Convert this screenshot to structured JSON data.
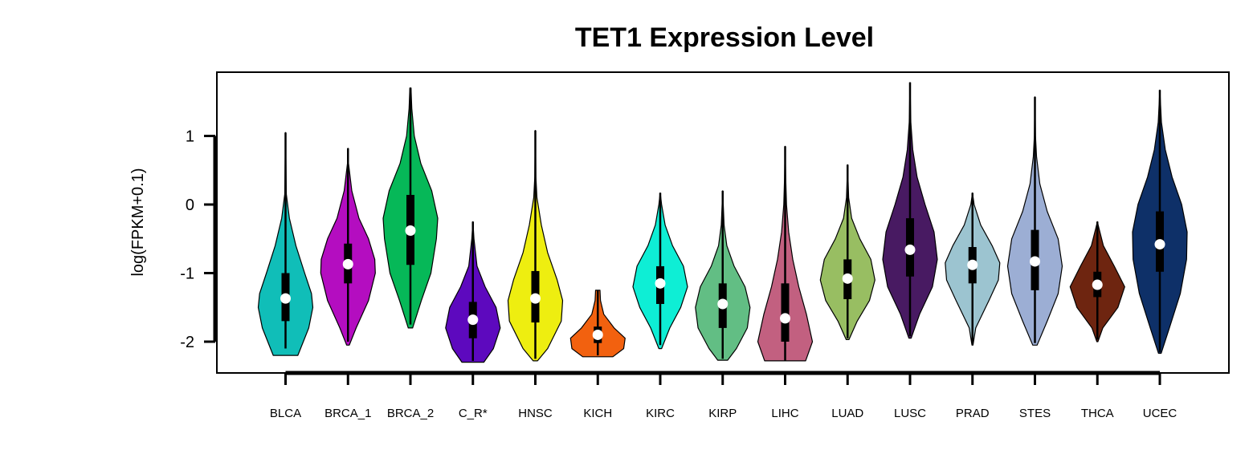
{
  "chart_data": {
    "type": "violin",
    "title": "TET1 Expression Level",
    "ylabel": "log(FPKM+0.1)",
    "ylim": [
      -2.5,
      2.0
    ],
    "yticks": [
      -2,
      -1,
      0,
      1
    ],
    "categories": [
      "BLCA",
      "BRCA_1",
      "BRCA_2",
      "C_R*",
      "HNSC",
      "KICH",
      "KIRC",
      "KIRP",
      "LIHC",
      "LUAD",
      "LUSC",
      "PRAD",
      "STES",
      "THCA",
      "UCEC"
    ],
    "series": [
      {
        "category": "BLCA",
        "color": "#10BEB8",
        "min": -2.2,
        "max": 1.05,
        "q1": -1.7,
        "median": -1.37,
        "q3": -1.0,
        "whisker_low": -2.1,
        "whisker_high": 1.05,
        "profile": [
          [
            -2.2,
            0.45
          ],
          [
            -2.1,
            0.55
          ],
          [
            -1.8,
            0.85
          ],
          [
            -1.5,
            1.0
          ],
          [
            -1.3,
            0.95
          ],
          [
            -1.0,
            0.7
          ],
          [
            -0.6,
            0.38
          ],
          [
            -0.2,
            0.14
          ],
          [
            0.15,
            0.03
          ]
        ]
      },
      {
        "category": "BRCA_1",
        "color": "#B40DC0",
        "min": -2.05,
        "max": 0.82,
        "q1": -1.15,
        "median": -0.87,
        "q3": -0.57,
        "whisker_low": -2.0,
        "whisker_high": 0.82,
        "profile": [
          [
            -2.05,
            0.05
          ],
          [
            -1.8,
            0.3
          ],
          [
            -1.4,
            0.75
          ],
          [
            -1.0,
            1.0
          ],
          [
            -0.8,
            0.98
          ],
          [
            -0.5,
            0.75
          ],
          [
            -0.2,
            0.4
          ],
          [
            0.2,
            0.14
          ],
          [
            0.6,
            0.02
          ]
        ]
      },
      {
        "category": "BRCA_2",
        "color": "#06B858",
        "min": -1.8,
        "max": 1.7,
        "q1": -0.88,
        "median": -0.38,
        "q3": 0.14,
        "whisker_low": -1.75,
        "whisker_high": 1.7,
        "profile": [
          [
            -1.8,
            0.08
          ],
          [
            -1.4,
            0.4
          ],
          [
            -1.0,
            0.75
          ],
          [
            -0.5,
            0.95
          ],
          [
            -0.2,
            1.0
          ],
          [
            0.2,
            0.78
          ],
          [
            0.6,
            0.38
          ],
          [
            1.0,
            0.14
          ],
          [
            1.4,
            0.05
          ],
          [
            1.7,
            0.02
          ]
        ]
      },
      {
        "category": "C_R*",
        "color": "#5D09BE",
        "min": -2.3,
        "max": -0.25,
        "q1": -1.95,
        "median": -1.68,
        "q3": -1.42,
        "whisker_low": -2.28,
        "whisker_high": -0.25,
        "profile": [
          [
            -2.3,
            0.4
          ],
          [
            -2.1,
            0.75
          ],
          [
            -1.8,
            1.0
          ],
          [
            -1.5,
            0.85
          ],
          [
            -1.2,
            0.45
          ],
          [
            -0.9,
            0.15
          ],
          [
            -0.5,
            0.04
          ],
          [
            -0.25,
            0.0
          ]
        ]
      },
      {
        "category": "HNSC",
        "color": "#EEEE10",
        "min": -2.28,
        "max": 1.08,
        "q1": -1.72,
        "median": -1.37,
        "q3": -0.97,
        "whisker_low": -2.25,
        "whisker_high": 1.08,
        "profile": [
          [
            -2.28,
            0.08
          ],
          [
            -2.1,
            0.45
          ],
          [
            -1.7,
            0.95
          ],
          [
            -1.4,
            1.0
          ],
          [
            -1.1,
            0.8
          ],
          [
            -0.7,
            0.45
          ],
          [
            -0.3,
            0.22
          ],
          [
            0.1,
            0.06
          ],
          [
            0.4,
            0.02
          ]
        ]
      },
      {
        "category": "KICH",
        "color": "#F2610F",
        "min": -2.22,
        "max": -1.25,
        "q1": -2.02,
        "median": -1.9,
        "q3": -1.78,
        "whisker_low": -2.2,
        "whisker_high": -1.25,
        "profile": [
          [
            -2.22,
            0.55
          ],
          [
            -2.1,
            0.95
          ],
          [
            -1.95,
            1.0
          ],
          [
            -1.8,
            0.6
          ],
          [
            -1.6,
            0.22
          ],
          [
            -1.4,
            0.1
          ],
          [
            -1.25,
            0.08
          ]
        ]
      },
      {
        "category": "KIRC",
        "color": "#0EEED5",
        "min": -2.1,
        "max": 0.17,
        "q1": -1.45,
        "median": -1.15,
        "q3": -0.9,
        "whisker_low": -2.05,
        "whisker_high": 0.17,
        "profile": [
          [
            -2.1,
            0.05
          ],
          [
            -1.8,
            0.35
          ],
          [
            -1.5,
            0.75
          ],
          [
            -1.2,
            1.0
          ],
          [
            -0.9,
            0.85
          ],
          [
            -0.6,
            0.45
          ],
          [
            -0.3,
            0.18
          ],
          [
            0.0,
            0.05
          ]
        ]
      },
      {
        "category": "KIRP",
        "color": "#62BE84",
        "min": -2.27,
        "max": 0.2,
        "q1": -1.8,
        "median": -1.45,
        "q3": -1.15,
        "whisker_low": -2.25,
        "whisker_high": 0.2,
        "profile": [
          [
            -2.27,
            0.18
          ],
          [
            -2.1,
            0.5
          ],
          [
            -1.8,
            0.9
          ],
          [
            -1.5,
            1.0
          ],
          [
            -1.2,
            0.82
          ],
          [
            -0.9,
            0.42
          ],
          [
            -0.6,
            0.15
          ],
          [
            -0.3,
            0.05
          ]
        ]
      },
      {
        "category": "LIHC",
        "color": "#C26080",
        "min": -2.28,
        "max": 0.85,
        "q1": -2.0,
        "median": -1.66,
        "q3": -1.15,
        "whisker_low": -2.28,
        "whisker_high": 0.85,
        "profile": [
          [
            -2.28,
            0.75
          ],
          [
            -2.0,
            1.0
          ],
          [
            -1.6,
            0.78
          ],
          [
            -1.2,
            0.5
          ],
          [
            -0.8,
            0.28
          ],
          [
            -0.4,
            0.13
          ],
          [
            0.0,
            0.05
          ],
          [
            0.4,
            0.02
          ]
        ]
      },
      {
        "category": "LUAD",
        "color": "#98BE62",
        "min": -1.97,
        "max": 0.58,
        "q1": -1.38,
        "median": -1.08,
        "q3": -0.8,
        "whisker_low": -1.95,
        "whisker_high": 0.58,
        "profile": [
          [
            -1.97,
            0.05
          ],
          [
            -1.7,
            0.35
          ],
          [
            -1.4,
            0.8
          ],
          [
            -1.1,
            1.0
          ],
          [
            -0.8,
            0.85
          ],
          [
            -0.5,
            0.45
          ],
          [
            -0.2,
            0.15
          ],
          [
            0.1,
            0.04
          ]
        ]
      },
      {
        "category": "LUSC",
        "color": "#481A62",
        "min": -1.95,
        "max": 1.78,
        "q1": -1.05,
        "median": -0.66,
        "q3": -0.2,
        "whisker_low": -1.92,
        "whisker_high": 1.78,
        "profile": [
          [
            -1.95,
            0.04
          ],
          [
            -1.6,
            0.35
          ],
          [
            -1.2,
            0.82
          ],
          [
            -0.8,
            1.0
          ],
          [
            -0.4,
            0.88
          ],
          [
            0.0,
            0.55
          ],
          [
            0.4,
            0.26
          ],
          [
            0.8,
            0.1
          ],
          [
            1.2,
            0.03
          ]
        ]
      },
      {
        "category": "PRAD",
        "color": "#9CC4D0",
        "min": -2.05,
        "max": 0.17,
        "q1": -1.15,
        "median": -0.88,
        "q3": -0.62,
        "whisker_low": -2.05,
        "whisker_high": 0.17,
        "profile": [
          [
            -2.05,
            0.02
          ],
          [
            -1.8,
            0.12
          ],
          [
            -1.4,
            0.6
          ],
          [
            -1.1,
            0.95
          ],
          [
            -0.85,
            1.0
          ],
          [
            -0.6,
            0.72
          ],
          [
            -0.3,
            0.3
          ],
          [
            0.0,
            0.06
          ]
        ]
      },
      {
        "category": "STES",
        "color": "#9CAED4",
        "min": -2.05,
        "max": 1.57,
        "q1": -1.25,
        "median": -0.83,
        "q3": -0.37,
        "whisker_low": -2.02,
        "whisker_high": 1.57,
        "profile": [
          [
            -2.05,
            0.08
          ],
          [
            -1.7,
            0.45
          ],
          [
            -1.3,
            0.85
          ],
          [
            -0.9,
            1.0
          ],
          [
            -0.5,
            0.85
          ],
          [
            -0.1,
            0.45
          ],
          [
            0.3,
            0.18
          ],
          [
            0.7,
            0.06
          ],
          [
            1.0,
            0.02
          ]
        ]
      },
      {
        "category": "THCA",
        "color": "#6E2510",
        "min": -2.0,
        "max": -0.25,
        "q1": -1.35,
        "median": -1.17,
        "q3": -0.98,
        "whisker_low": -1.97,
        "whisker_high": -0.25,
        "profile": [
          [
            -2.0,
            0.02
          ],
          [
            -1.8,
            0.2
          ],
          [
            -1.5,
            0.75
          ],
          [
            -1.2,
            1.0
          ],
          [
            -0.9,
            0.62
          ],
          [
            -0.6,
            0.22
          ],
          [
            -0.35,
            0.06
          ]
        ]
      },
      {
        "category": "UCEC",
        "color": "#0E3068",
        "min": -2.17,
        "max": 1.67,
        "q1": -0.98,
        "median": -0.58,
        "q3": -0.1,
        "whisker_low": -2.15,
        "whisker_high": 1.67,
        "profile": [
          [
            -2.17,
            0.05
          ],
          [
            -1.8,
            0.35
          ],
          [
            -1.3,
            0.75
          ],
          [
            -0.8,
            0.98
          ],
          [
            -0.4,
            1.0
          ],
          [
            0.0,
            0.8
          ],
          [
            0.4,
            0.45
          ],
          [
            0.8,
            0.2
          ],
          [
            1.2,
            0.06
          ]
        ]
      }
    ]
  }
}
